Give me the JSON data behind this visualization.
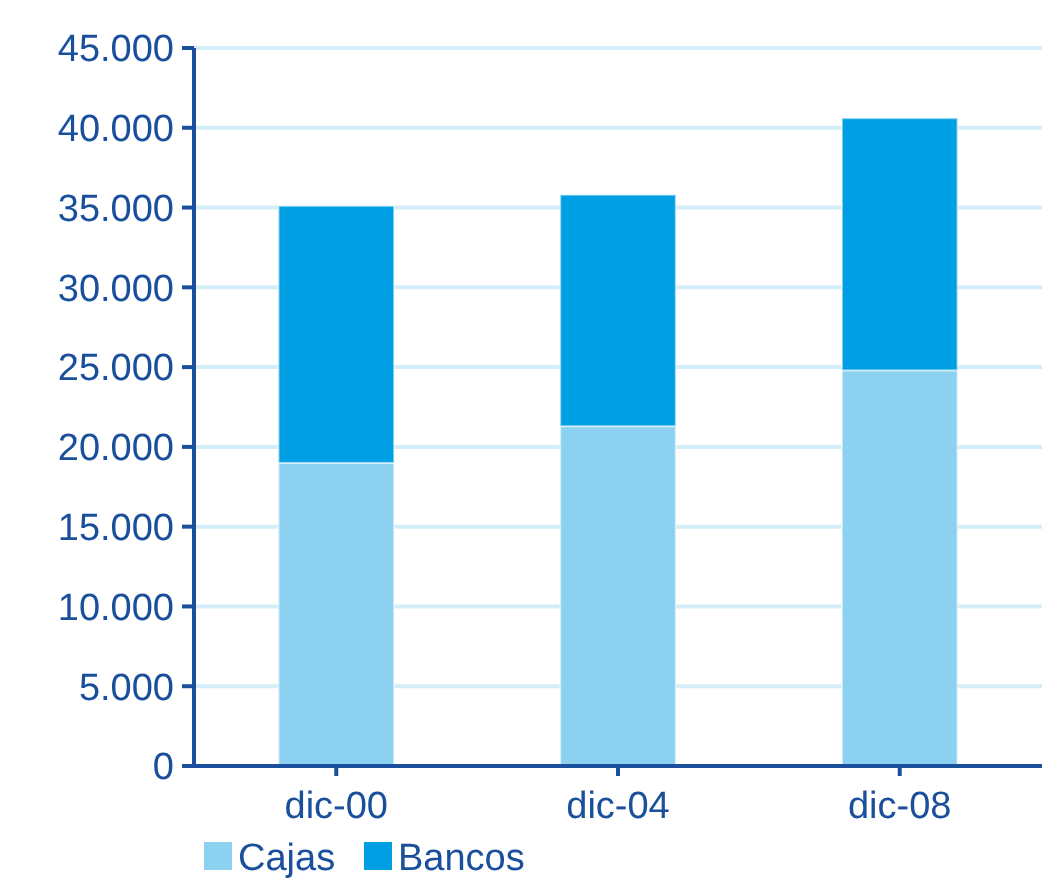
{
  "chart_data": {
    "type": "bar",
    "stacked": true,
    "categories": [
      "dic-00",
      "dic-04",
      "dic-08"
    ],
    "series": [
      {
        "name": "Cajas",
        "color": "#8dd1f1",
        "values": [
          19000,
          21300,
          24800
        ]
      },
      {
        "name": "Bancos",
        "color": "#009fe3",
        "values": [
          16100,
          14500,
          15800
        ]
      }
    ],
    "ylim": [
      0,
      45000
    ],
    "yticks": [
      {
        "value": 0,
        "label": "0"
      },
      {
        "value": 5000,
        "label": "5.000"
      },
      {
        "value": 10000,
        "label": "10.000"
      },
      {
        "value": 15000,
        "label": "15.000"
      },
      {
        "value": 20000,
        "label": "20.000"
      },
      {
        "value": 25000,
        "label": "25.000"
      },
      {
        "value": 30000,
        "label": "30.000"
      },
      {
        "value": 35000,
        "label": "35.000"
      },
      {
        "value": 40000,
        "label": "40.000"
      },
      {
        "value": 45000,
        "label": "45.000"
      }
    ],
    "grid": "y",
    "legend": "bottom"
  }
}
